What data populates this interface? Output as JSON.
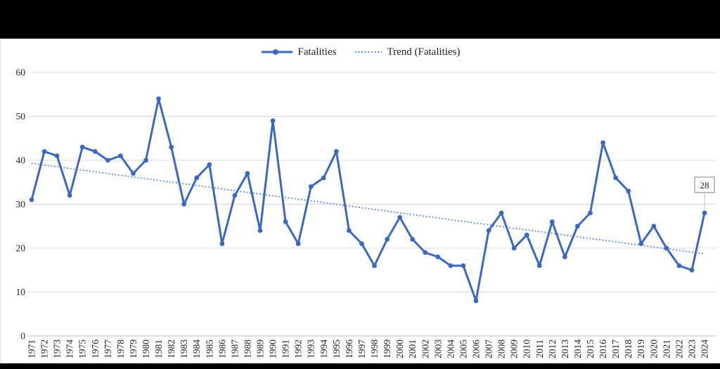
{
  "window": {
    "background": "#000000"
  },
  "legend": {
    "series1_label": "Fatalities",
    "series2_label": "Trend (Fatalities)"
  },
  "chart_data": {
    "type": "line",
    "title": "",
    "xlabel": "",
    "ylabel": "",
    "ylim": [
      0,
      60
    ],
    "y_ticks": [
      "0",
      "10",
      "20",
      "30",
      "40",
      "50",
      "60"
    ],
    "grid": "horizontal",
    "legend_position": "top-center",
    "x": [
      "1971",
      "1972",
      "1973",
      "1974",
      "1975",
      "1976",
      "1977",
      "1978",
      "1979",
      "1980",
      "1981",
      "1982",
      "1983",
      "1984",
      "1985",
      "1986",
      "1987",
      "1988",
      "1989",
      "1990",
      "1991",
      "1992",
      "1993",
      "1994",
      "1995",
      "1996",
      "1997",
      "1998",
      "1999",
      "2000",
      "2001",
      "2002",
      "2003",
      "2004",
      "2005",
      "2006",
      "2007",
      "2008",
      "2009",
      "2010",
      "2011",
      "2012",
      "2013",
      "2014",
      "2015",
      "2016",
      "2017",
      "2018",
      "2019",
      "2020",
      "2021",
      "2022",
      "2023",
      "2024"
    ],
    "series": [
      {
        "name": "Fatalities",
        "style": "solid",
        "markers": true,
        "color": "#3c68bc",
        "values": [
          31,
          42,
          41,
          32,
          43,
          42,
          40,
          41,
          37,
          40,
          54,
          43,
          30,
          36,
          39,
          21,
          32,
          37,
          24,
          49,
          26,
          21,
          34,
          36,
          42,
          24,
          21,
          16,
          22,
          27,
          22,
          19,
          18,
          16,
          16,
          8,
          24,
          28,
          20,
          23,
          16,
          26,
          18,
          25,
          28,
          44,
          36,
          33,
          21,
          25,
          20,
          16,
          15,
          28
        ]
      },
      {
        "name": "Trend (Fatalities)",
        "style": "dotted",
        "markers": false,
        "color": "#5c7fd0",
        "trend": {
          "start_value": 39.3,
          "end_value": 18.7
        }
      }
    ],
    "annotation": {
      "x": "2024",
      "value": 28,
      "label": "28"
    }
  },
  "colors": {
    "gridline": "#d9d9d9",
    "axis_line": "#b7b7b7",
    "text": "#262626",
    "callout_border": "#7f7f7f",
    "callout_leader": "#bfbfbf",
    "sheet_background": "#ffffff"
  }
}
